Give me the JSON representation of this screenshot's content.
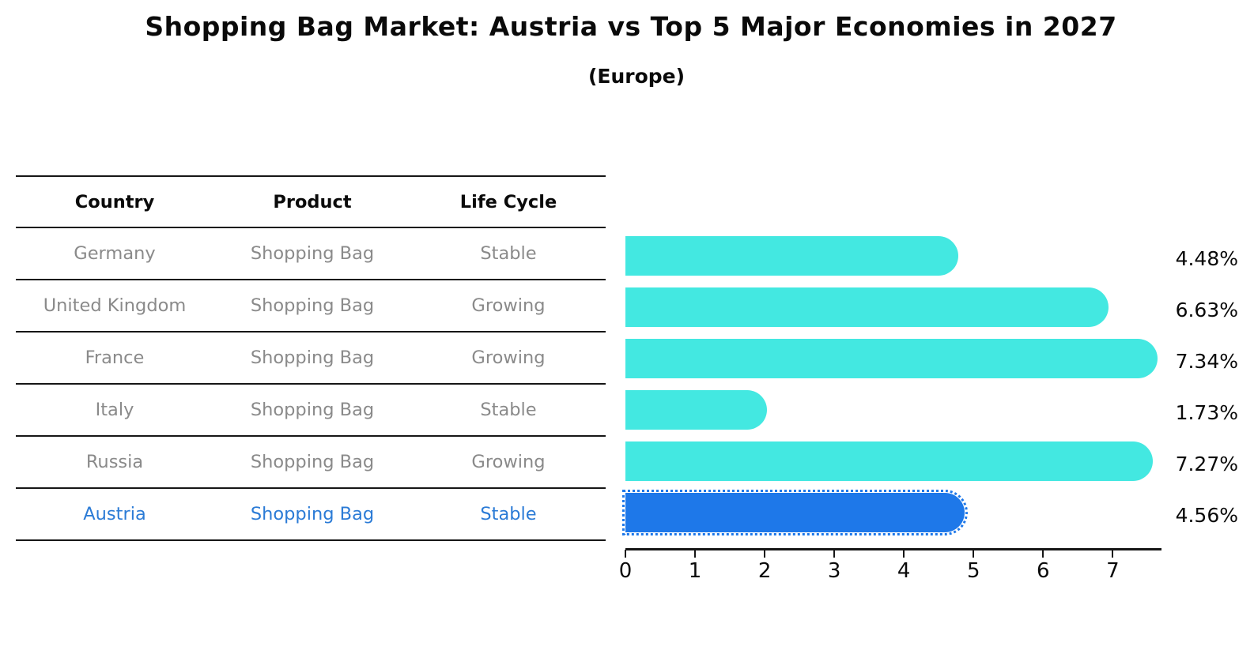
{
  "title": "Shopping Bag Market: Austria vs Top 5 Major Economies in 2027",
  "subtitle": "(Europe)",
  "table": {
    "headers": [
      "Country",
      "Product",
      "Life Cycle"
    ],
    "rows": [
      {
        "country": "Germany",
        "product": "Shopping Bag",
        "life_cycle": "Stable",
        "highlight": false
      },
      {
        "country": "United Kingdom",
        "product": "Shopping Bag",
        "life_cycle": "Growing",
        "highlight": false
      },
      {
        "country": "France",
        "product": "Shopping Bag",
        "life_cycle": "Growing",
        "highlight": false
      },
      {
        "country": "Italy",
        "product": "Shopping Bag",
        "life_cycle": "Stable",
        "highlight": false
      },
      {
        "country": "Russia",
        "product": "Shopping Bag",
        "life_cycle": "Growing",
        "highlight": false
      },
      {
        "country": "Austria",
        "product": "Shopping Bag",
        "life_cycle": "Stable",
        "highlight": true
      }
    ]
  },
  "chart_data": {
    "type": "bar",
    "orientation": "horizontal",
    "title": "Shopping Bag Market: Austria vs Top 5 Major Economies in 2027",
    "subtitle": "(Europe)",
    "categories": [
      "Germany",
      "United Kingdom",
      "France",
      "Italy",
      "Russia",
      "Austria"
    ],
    "values": [
      4.48,
      6.63,
      7.34,
      1.73,
      7.27,
      4.56
    ],
    "value_labels": [
      "4.48%",
      "6.63%",
      "7.34%",
      "1.73%",
      "7.27%",
      "4.56%"
    ],
    "xlabel": "",
    "ylabel": "",
    "xlim": [
      0,
      7.7
    ],
    "x_ticks": [
      0,
      1,
      2,
      3,
      4,
      5,
      6,
      7
    ],
    "grid": false,
    "legend": false,
    "highlight_index": 5
  },
  "colors": {
    "bar_color": "#43E8E1",
    "highlight_bar_color": "#1E78E9",
    "highlight_outline_color": "#1E78E9",
    "highlight_text_color": "#2B7BD6",
    "row_text_color": "#8A8A8A",
    "axis_color": "#161616",
    "title_color": "#0A0A0A"
  }
}
